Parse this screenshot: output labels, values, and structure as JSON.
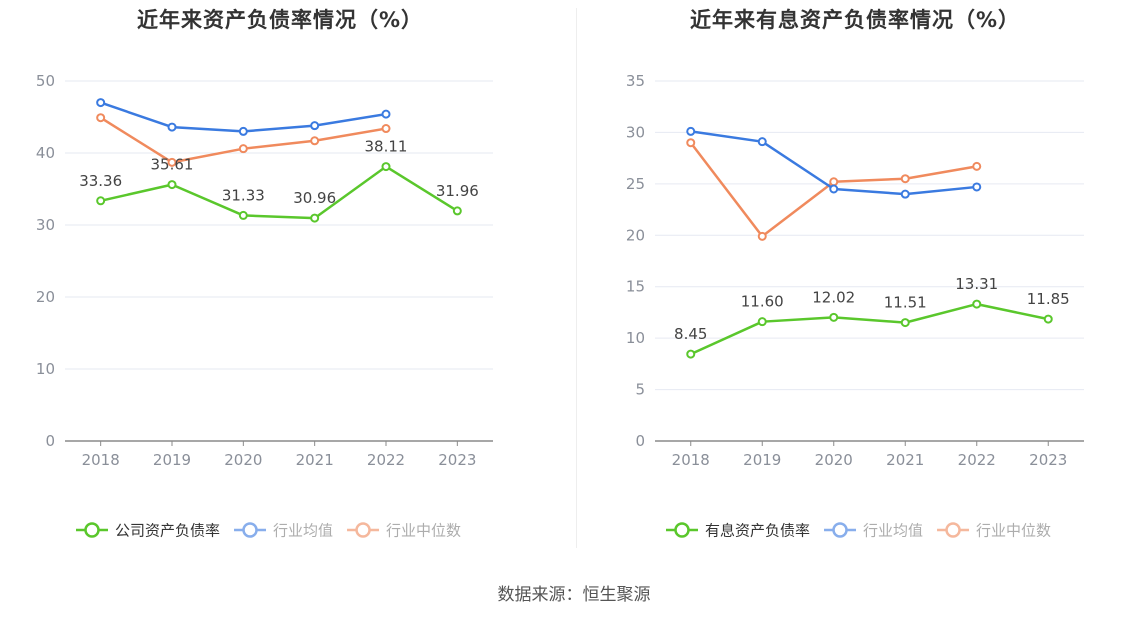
{
  "footer": {
    "source": "数据来源：恒生聚源"
  },
  "chart_data": [
    {
      "type": "line",
      "title": "近年来资产负债率情况（%）",
      "categories": [
        "2018",
        "2019",
        "2020",
        "2021",
        "2022",
        "2023"
      ],
      "ylim": [
        0,
        50
      ],
      "yticks": [
        0,
        10,
        20,
        30,
        40,
        50
      ],
      "grid": true,
      "legend_position": "bottom",
      "series": [
        {
          "name": "公司资产负债率",
          "color": "#5ac72c",
          "values": [
            33.36,
            35.61,
            31.33,
            30.96,
            38.11,
            31.96
          ],
          "labels": [
            "33.36",
            "35.61",
            "31.33",
            "30.96",
            "38.11",
            "31.96"
          ]
        },
        {
          "name": "行业均值",
          "color": "#3a7ae0",
          "values": [
            47.0,
            43.6,
            43.0,
            43.8,
            45.4,
            null
          ]
        },
        {
          "name": "行业中位数",
          "color": "#f08a5d",
          "values": [
            44.9,
            38.7,
            40.6,
            41.7,
            43.4,
            null
          ]
        }
      ]
    },
    {
      "type": "line",
      "title": "近年来有息资产负债率情况（%）",
      "categories": [
        "2018",
        "2019",
        "2020",
        "2021",
        "2022",
        "2023"
      ],
      "ylim": [
        0,
        35
      ],
      "yticks": [
        0,
        5,
        10,
        15,
        20,
        25,
        30,
        35
      ],
      "grid": true,
      "legend_position": "bottom",
      "series": [
        {
          "name": "有息资产负债率",
          "color": "#5ac72c",
          "values": [
            8.45,
            11.6,
            12.02,
            11.51,
            13.31,
            11.85
          ],
          "labels": [
            "8.45",
            "11.60",
            "12.02",
            "11.51",
            "13.31",
            "11.85"
          ]
        },
        {
          "name": "行业均值",
          "color": "#3a7ae0",
          "values": [
            30.1,
            29.1,
            24.5,
            24.0,
            24.7,
            null
          ]
        },
        {
          "name": "行业中位数",
          "color": "#f08a5d",
          "values": [
            29.0,
            19.9,
            25.2,
            25.5,
            26.7,
            null
          ]
        }
      ]
    }
  ]
}
